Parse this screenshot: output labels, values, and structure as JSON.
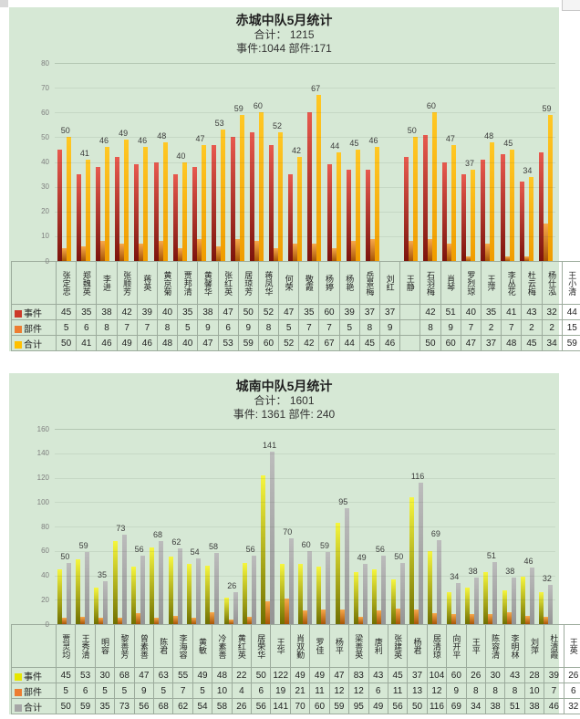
{
  "page": {
    "background": "#ffffff",
    "panel_background": "#d6e8d5"
  },
  "colors": {
    "red": {
      "grad": [
        "#e8594e",
        "#7c140c"
      ],
      "legend": "#cc3a2a"
    },
    "orange": {
      "grad": [
        "#f7a84b",
        "#a85506"
      ],
      "legend": "#ed7d31"
    },
    "gold": {
      "grad": [
        "#ffc824",
        "#f09c00"
      ],
      "legend": "#ffc000"
    },
    "yellow": {
      "grad": [
        "#f6f63e",
        "#6f6f00"
      ],
      "legend": "#e6e600"
    },
    "gray": {
      "grad": [
        "#bcbcbc",
        "#949494"
      ],
      "legend": "#a6a6a6"
    }
  },
  "chart_data": [
    {
      "type": "bar",
      "title": "赤城中队5月统计",
      "subtitle_total": "合计： 1215",
      "subtitle_detail": "事件:1044 部件:171",
      "ylim": [
        0,
        80
      ],
      "ystep": 10,
      "grid": "ticks-left, faint horizontal lines",
      "legend_position": "table-row-headers",
      "bar_labels_from": "合计",
      "categories": [
        "张定忠",
        "郑魏英",
        "李进",
        "张顺芳",
        "蒋英",
        "黄京菊",
        "贾邦清",
        "黄馨华",
        "张红英",
        "居琼芳",
        "蒋凤华",
        "何荣",
        "敬霞",
        "杨婷",
        "杨艳",
        "岳景梅",
        "刘红",
        "王静",
        "石羽梅",
        "肖琴",
        "罗烈琼",
        "王萍",
        "李丛花",
        "杜云梅",
        "杨仕泓",
        "王小清"
      ],
      "series": [
        {
          "name": "事件",
          "palette": "red",
          "values": [
            45,
            35,
            38,
            42,
            39,
            40,
            35,
            38,
            47,
            50,
            52,
            47,
            35,
            60,
            39,
            37,
            37,
            null,
            42,
            51,
            40,
            35,
            41,
            43,
            32,
            44
          ]
        },
        {
          "name": "部件",
          "palette": "orange",
          "values": [
            5,
            6,
            8,
            7,
            7,
            8,
            5,
            9,
            6,
            9,
            8,
            5,
            7,
            7,
            5,
            8,
            9,
            null,
            8,
            9,
            7,
            2,
            7,
            2,
            2,
            15
          ]
        },
        {
          "name": "合计",
          "palette": "gold",
          "values": [
            50,
            41,
            46,
            49,
            46,
            48,
            40,
            47,
            53,
            59,
            60,
            52,
            42,
            67,
            44,
            45,
            46,
            null,
            50,
            60,
            47,
            37,
            48,
            45,
            34,
            59
          ]
        }
      ]
    },
    {
      "type": "bar",
      "title": "城南中队5月统计",
      "subtitle_total": "合计： 1601",
      "subtitle_detail": "事件: 1361 部件: 240",
      "ylim": [
        0,
        160
      ],
      "ystep": 20,
      "grid": "ticks-left, faint horizontal lines",
      "legend_position": "table-row-headers",
      "bar_labels_from": "合计",
      "categories": [
        "贾灵均",
        "王秀清",
        "明容",
        "黎善芳",
        "曾素善",
        "陈君",
        "李海容",
        "黄敏",
        "冷素善",
        "黄红英",
        "居荣华",
        "王华",
        "肖双勤",
        "罗佳",
        "杨平",
        "梁善英",
        "唐利",
        "张建英",
        "杨君",
        "居清琼",
        "向开平",
        "王平",
        "陈容清",
        "李明林",
        "刘萍",
        "杜清霞",
        "王英"
      ],
      "series": [
        {
          "name": "事件",
          "palette": "yellow",
          "values": [
            45,
            53,
            30,
            68,
            47,
            63,
            55,
            49,
            48,
            22,
            50,
            122,
            49,
            49,
            47,
            83,
            43,
            45,
            37,
            104,
            60,
            26,
            30,
            43,
            28,
            39,
            26
          ]
        },
        {
          "name": "部件",
          "palette": "orange",
          "values": [
            5,
            6,
            5,
            5,
            9,
            5,
            7,
            5,
            10,
            4,
            6,
            19,
            21,
            11,
            12,
            12,
            6,
            11,
            13,
            12,
            9,
            8,
            8,
            8,
            10,
            7,
            6
          ]
        },
        {
          "name": "合计",
          "palette": "gray",
          "values": [
            50,
            59,
            35,
            73,
            56,
            68,
            62,
            54,
            58,
            26,
            56,
            141,
            70,
            60,
            59,
            95,
            49,
            56,
            50,
            116,
            69,
            34,
            38,
            51,
            38,
            46,
            32
          ]
        }
      ]
    }
  ]
}
